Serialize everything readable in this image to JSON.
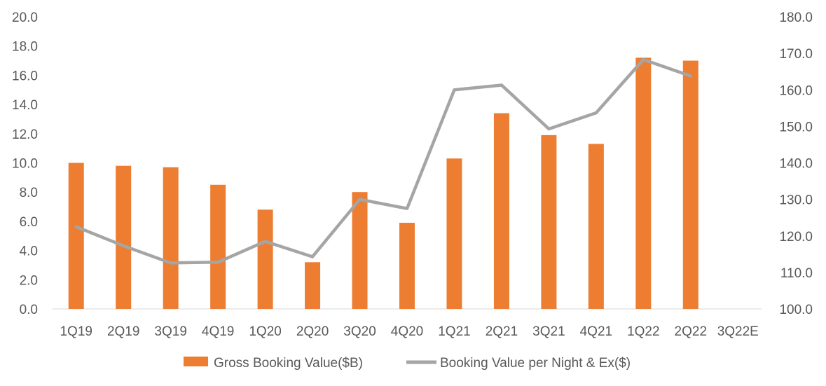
{
  "chart_data": {
    "type": "bar",
    "categories": [
      "1Q19",
      "2Q19",
      "3Q19",
      "4Q19",
      "1Q20",
      "2Q20",
      "3Q20",
      "4Q20",
      "1Q21",
      "2Q21",
      "3Q21",
      "4Q21",
      "1Q22",
      "2Q22",
      "3Q22E"
    ],
    "series": [
      {
        "name": "Gross Booking Value($B)",
        "type": "bar",
        "axis": "left",
        "color": "#ED7D31",
        "values": [
          10.0,
          9.8,
          9.7,
          8.5,
          6.8,
          3.2,
          8.0,
          5.9,
          10.3,
          13.4,
          11.9,
          11.3,
          17.2,
          17.0,
          null
        ]
      },
      {
        "name": "Booking Value per Night & Ex($)",
        "type": "line",
        "axis": "right",
        "color": "#A5A5A5",
        "values": [
          122.5,
          117.3,
          112.6,
          112.8,
          118.5,
          114.3,
          130.0,
          127.5,
          160.0,
          161.3,
          149.3,
          153.7,
          168.3,
          163.8,
          null
        ]
      }
    ],
    "y_left": {
      "min": 0,
      "max": 20,
      "tick_labels": [
        "0.0",
        "2.0",
        "4.0",
        "6.0",
        "8.0",
        "10.0",
        "12.0",
        "14.0",
        "16.0",
        "18.0",
        "20.0"
      ]
    },
    "y_right": {
      "min": 100,
      "max": 180,
      "tick_labels": [
        "100.0",
        "110.0",
        "120.0",
        "130.0",
        "140.0",
        "150.0",
        "160.0",
        "170.0",
        "180.0"
      ]
    },
    "grid": false,
    "legend": "bottom",
    "title": "",
    "xlabel": "",
    "ylabel": ""
  }
}
